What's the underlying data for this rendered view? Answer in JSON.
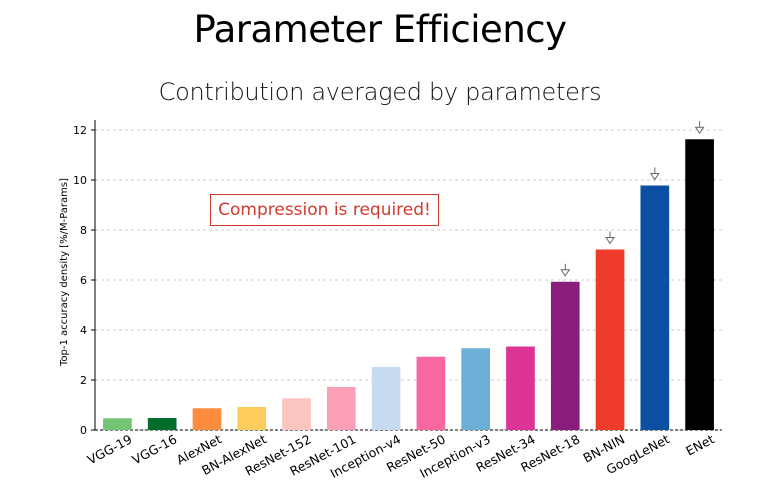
{
  "page": {
    "title": "Parameter Efficiency",
    "subtitle": "Contribution averaged by parameters",
    "callout": "Compression is required!"
  },
  "chart_data": {
    "type": "bar",
    "ylabel": "Top-1 accuracy density [%/M-Params]",
    "xlabel": "",
    "ylim": [
      0,
      12.4
    ],
    "yticks": [
      0,
      2,
      4,
      6,
      8,
      10,
      12
    ],
    "grid": "horizontal dashed",
    "categories": [
      "VGG-19",
      "VGG-16",
      "AlexNet",
      "BN-AlexNet",
      "ResNet-152",
      "ResNet-101",
      "Inception-v4",
      "ResNet-50",
      "Inception-v3",
      "ResNet-34",
      "ResNet-18",
      "BN-NIN",
      "GoogLeNet",
      "ENet"
    ],
    "values": [
      0.47,
      0.48,
      0.87,
      0.92,
      1.27,
      1.72,
      2.52,
      2.93,
      3.27,
      3.34,
      5.93,
      7.22,
      9.78,
      11.63
    ],
    "colors": [
      "#74c476",
      "#006d2c",
      "#fd8d3c",
      "#fecc5c",
      "#fcc5c0",
      "#fa9fb5",
      "#c6dbef",
      "#f768a1",
      "#6baed6",
      "#dd3497",
      "#8a1c7c",
      "#ef3b2c",
      "#0b4fa3",
      "#000000"
    ],
    "arrow_marked": [
      "ResNet-18",
      "BN-NIN",
      "GoogLeNet",
      "ENet"
    ]
  }
}
